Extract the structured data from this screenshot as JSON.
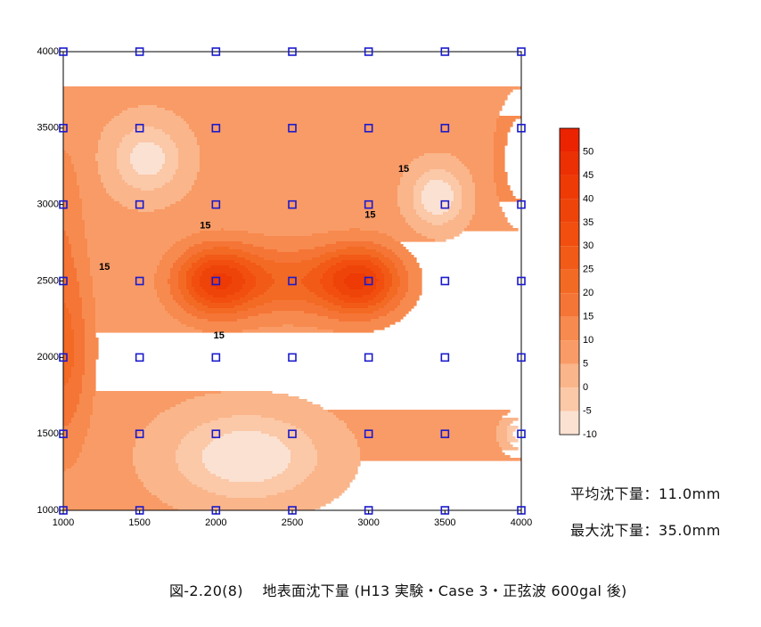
{
  "chart_data": {
    "type": "heatmap",
    "subtype": "filled-contour",
    "title": "",
    "xlabel": "",
    "ylabel": "",
    "xlim": [
      1000,
      4000
    ],
    "ylim": [
      1000,
      4000
    ],
    "x_ticks": [
      1000,
      1500,
      2000,
      2500,
      3000,
      3500,
      4000
    ],
    "y_ticks": [
      1000,
      1500,
      2000,
      2500,
      3000,
      3500,
      4000
    ],
    "x_tick_labels": [
      "1000",
      "1500",
      "2000",
      "2500",
      "3000",
      "3500",
      "4000"
    ],
    "y_tick_labels": [
      "1000",
      "1500",
      "2000",
      "2500",
      "3000",
      "3500",
      "4000"
    ],
    "contour_levels": [
      -10,
      -5,
      0,
      5,
      10,
      15,
      20,
      25,
      30,
      35,
      40,
      45,
      50,
      55
    ],
    "colorbar_tick_labels": [
      "50",
      "45",
      "40",
      "35",
      "30",
      "25",
      "20",
      "15",
      "10",
      "5",
      "0",
      "-5",
      "-10"
    ],
    "colorbar_colors": [
      "#fbe1d1",
      "#fbc8a8",
      "#fab58a",
      "#f99b66",
      "#f78a4e",
      "#f57536",
      "#f36a24",
      "#f25a18",
      "#f14e0f",
      "#ef4409",
      "#ee3a05",
      "#ec3003",
      "#eb2300"
    ],
    "contour_annotations": [
      {
        "text": "15",
        "x": 1270,
        "y": 2590
      },
      {
        "text": "15",
        "x": 1930,
        "y": 2860
      },
      {
        "text": "15",
        "x": 2020,
        "y": 2140
      },
      {
        "text": "15",
        "x": 3010,
        "y": 2930
      },
      {
        "text": "15",
        "x": 3230,
        "y": 3230
      }
    ],
    "measurement_points": [
      [
        1000,
        4000
      ],
      [
        1500,
        4000
      ],
      [
        2000,
        4000
      ],
      [
        2500,
        4000
      ],
      [
        3000,
        4000
      ],
      [
        3500,
        4000
      ],
      [
        4000,
        4000
      ],
      [
        1000,
        3500
      ],
      [
        1500,
        3500
      ],
      [
        2000,
        3500
      ],
      [
        2500,
        3500
      ],
      [
        3000,
        3500
      ],
      [
        3500,
        3500
      ],
      [
        4000,
        3500
      ],
      [
        1000,
        3000
      ],
      [
        1500,
        3000
      ],
      [
        2000,
        3000
      ],
      [
        2500,
        3000
      ],
      [
        3000,
        3000
      ],
      [
        3500,
        3000
      ],
      [
        4000,
        3000
      ],
      [
        1000,
        2500
      ],
      [
        1500,
        2500
      ],
      [
        2000,
        2500
      ],
      [
        2500,
        2500
      ],
      [
        3000,
        2500
      ],
      [
        3500,
        2500
      ],
      [
        4000,
        2500
      ],
      [
        1000,
        2000
      ],
      [
        1500,
        2000
      ],
      [
        2000,
        2000
      ],
      [
        2500,
        2000
      ],
      [
        3000,
        2000
      ],
      [
        3500,
        2000
      ],
      [
        4000,
        2000
      ],
      [
        1000,
        1500
      ],
      [
        1500,
        1500
      ],
      [
        2000,
        1500
      ],
      [
        2500,
        1500
      ],
      [
        3000,
        1500
      ],
      [
        3500,
        1500
      ],
      [
        4000,
        1500
      ],
      [
        1000,
        1000
      ],
      [
        1500,
        1000
      ],
      [
        2000,
        1000
      ],
      [
        2500,
        1000
      ],
      [
        3000,
        1000
      ],
      [
        3500,
        1000
      ],
      [
        4000,
        1000
      ]
    ],
    "field_features": [
      {
        "kind": "peak",
        "x": 2000,
        "y": 2500,
        "value": 35,
        "sx": 260,
        "sy": 220
      },
      {
        "kind": "peak",
        "x": 2950,
        "y": 2500,
        "value": 35,
        "sx": 260,
        "sy": 220
      },
      {
        "kind": "ridge",
        "x": 2480,
        "y": 2500,
        "value": 22,
        "sx": 520,
        "sy": 230
      },
      {
        "kind": "edge-high",
        "x": 1000,
        "y": 2050,
        "value": 22,
        "sx": 180,
        "sy": 650
      },
      {
        "kind": "edge-high",
        "x": 1000,
        "y": 3000,
        "value": 12,
        "sx": 130,
        "sy": 500
      },
      {
        "kind": "edge-high",
        "x": 4000,
        "y": 3300,
        "value": 20,
        "sx": 160,
        "sy": 400
      },
      {
        "kind": "low",
        "x": 1550,
        "y": 3300,
        "value": -8,
        "sx": 230,
        "sy": 230
      },
      {
        "kind": "low",
        "x": 3450,
        "y": 3050,
        "value": -10,
        "sx": 170,
        "sy": 190
      },
      {
        "kind": "low",
        "x": 2200,
        "y": 1350,
        "value": -10,
        "sx": 480,
        "sy": 280
      },
      {
        "kind": "low",
        "x": 4000,
        "y": 1500,
        "value": -8,
        "sx": 110,
        "sy": 110
      }
    ]
  },
  "stats": {
    "mean_text": "平均沈下量：11.0mm",
    "max_text": "最大沈下量：35.0mm"
  },
  "caption": "図-2.20(8)　 地表面沈下量 (H13 実験・Case 3・正弦波 600gal 後)"
}
